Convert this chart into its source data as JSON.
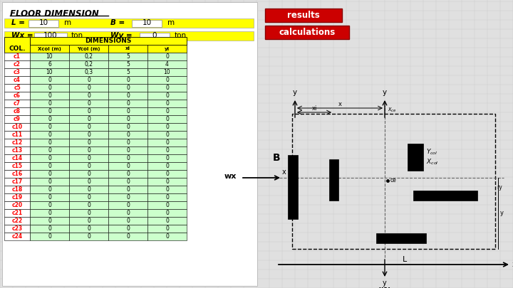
{
  "title": "FLOOR DIMENSION",
  "L_label": "L =",
  "L_value": "10",
  "L_unit": "m",
  "B_label": "B =",
  "B_value": "10",
  "B_unit": "m",
  "Wx_label": "Wx =",
  "Wx_value": "100",
  "Wx_unit": "ton",
  "Wy_label": "Wy =",
  "Wy_value": "0",
  "Wy_unit": "ton",
  "col_header": "COL.",
  "dim_header": "DIMENSIONS",
  "sub_headers": [
    "Xcol (m)",
    "Ycol (m)",
    "xi",
    "yi"
  ],
  "columns": [
    "c1",
    "c2",
    "c3",
    "c4",
    "c5",
    "c6",
    "c7",
    "c8",
    "c9",
    "c10",
    "c11",
    "c12",
    "c13",
    "c14",
    "c15",
    "c16",
    "c17",
    "c18",
    "c19",
    "c20",
    "c21",
    "c22",
    "c23",
    "c24"
  ],
  "xcol": [
    10,
    6,
    10,
    0,
    0,
    0,
    0,
    0,
    0,
    0,
    0,
    0,
    0,
    0,
    0,
    0,
    0,
    0,
    0,
    0,
    0,
    0,
    0,
    0
  ],
  "ycol": [
    0.2,
    0.2,
    0.3,
    0,
    0,
    0,
    0,
    0,
    0,
    0,
    0,
    0,
    0,
    0,
    0,
    0,
    0,
    0,
    0,
    0,
    0,
    0,
    0,
    0
  ],
  "xi": [
    5,
    5,
    5,
    0,
    0,
    0,
    0,
    0,
    0,
    0,
    0,
    0,
    0,
    0,
    0,
    0,
    0,
    0,
    0,
    0,
    0,
    0,
    0,
    0
  ],
  "yi": [
    0,
    4,
    10,
    0,
    0,
    0,
    0,
    0,
    0,
    0,
    0,
    0,
    0,
    0,
    0,
    0,
    0,
    0,
    0,
    0,
    0,
    0,
    0,
    0
  ],
  "yellow": "#FFFF00",
  "green": "#CCFFCC",
  "red_btn": "#CC0000",
  "bg": "#e0e0e0"
}
